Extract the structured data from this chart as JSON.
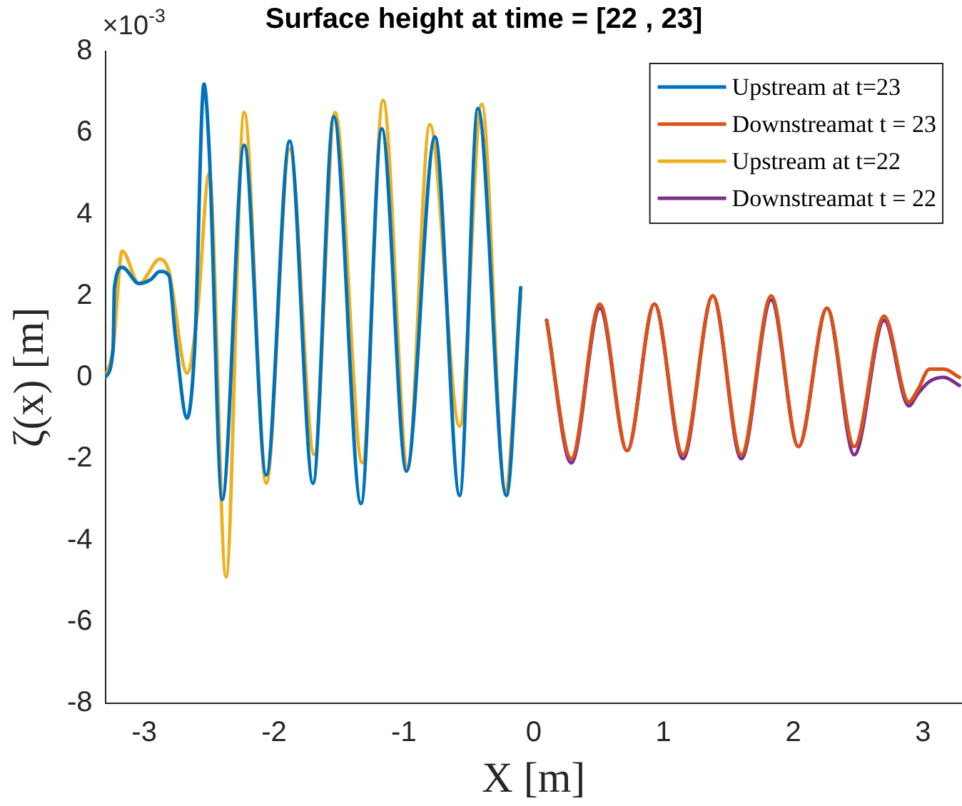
{
  "chart_data": {
    "type": "line",
    "title": "Surface height at time = [22 , 23]",
    "xlabel": "X [m]",
    "ylabel": "ζ(x) [m]",
    "annotations": [
      "×10$^{-3}$"
    ],
    "xlim": [
      -3.3,
      3.3
    ],
    "xticks": [
      -3,
      -2,
      -1,
      0,
      1,
      2,
      3
    ],
    "ylim": [
      -8,
      8
    ],
    "yticks": [
      -8,
      -6,
      -4,
      -2,
      0,
      2,
      4,
      6,
      8
    ],
    "grid": false,
    "legend": "top right",
    "marker": "none",
    "line_style": "solid",
    "series": [
      {
        "name": "Upstream at t=23",
        "color": "#0072bd",
        "x": [
          -3.3,
          -3.24,
          -3.23,
          -3.17,
          -3.04,
          -2.95,
          -2.88,
          -2.81,
          -2.76,
          -2.67,
          -2.61,
          -2.54,
          -2.5,
          -2.4,
          -2.23,
          -2.06,
          -1.88,
          -1.7,
          -1.54,
          -1.33,
          -1.17,
          -0.98,
          -0.76,
          -0.57,
          -0.43,
          -0.21,
          -0.1
        ],
        "values": [
          0,
          0.7,
          2.2,
          2.7,
          2.3,
          2.4,
          2.6,
          2.5,
          1.0,
          -1.0,
          0.8,
          7.2,
          5.6,
          -3.0,
          5.7,
          -2.4,
          5.8,
          -2.6,
          6.4,
          -3.1,
          6.1,
          -2.3,
          5.9,
          -2.9,
          6.6,
          -2.9,
          2.2
        ]
      },
      {
        "name": "Downstreamat t = 23",
        "color": "#d95319",
        "x": [
          0.1,
          0.29,
          0.51,
          0.72,
          0.93,
          1.15,
          1.38,
          1.6,
          1.83,
          2.04,
          2.26,
          2.47,
          2.7,
          2.89,
          2.96,
          3.05,
          3.16,
          3.28
        ],
        "values": [
          1.4,
          -2.0,
          1.8,
          -1.8,
          1.8,
          -1.9,
          2.0,
          -1.9,
          2.0,
          -1.7,
          1.7,
          -1.7,
          1.5,
          -0.6,
          -0.3,
          0.2,
          0.2,
          0.0
        ]
      },
      {
        "name": "Upstream at t=22",
        "color": "#edb120",
        "x": [
          -3.3,
          -3.24,
          -3.17,
          -3.04,
          -2.88,
          -2.81,
          -2.67,
          -2.59,
          -2.5,
          -2.37,
          -2.23,
          -2.06,
          -1.88,
          -1.69,
          -1.53,
          -1.32,
          -1.16,
          -0.97,
          -0.8,
          -0.57,
          -0.4,
          -0.22,
          -0.1
        ],
        "values": [
          0,
          0.7,
          3.1,
          2.3,
          2.9,
          2.6,
          0.1,
          1.6,
          5.0,
          -4.9,
          6.5,
          -2.6,
          5.6,
          -1.9,
          6.5,
          -2.1,
          6.8,
          -2.2,
          6.2,
          -1.2,
          6.7,
          -2.8,
          2.0
        ]
      },
      {
        "name": "Downstreamat t = 22",
        "color": "#7e2f8e",
        "x": [
          0.1,
          0.29,
          0.51,
          0.72,
          0.93,
          1.15,
          1.38,
          1.6,
          1.83,
          2.04,
          2.26,
          2.47,
          2.7,
          2.89,
          2.96,
          3.05,
          3.16,
          3.28
        ],
        "values": [
          1.4,
          -2.1,
          1.7,
          -1.8,
          1.8,
          -2.0,
          2.0,
          -2.0,
          1.9,
          -1.7,
          1.7,
          -1.9,
          1.4,
          -0.7,
          -0.4,
          -0.1,
          0.0,
          -0.2
        ]
      }
    ]
  }
}
